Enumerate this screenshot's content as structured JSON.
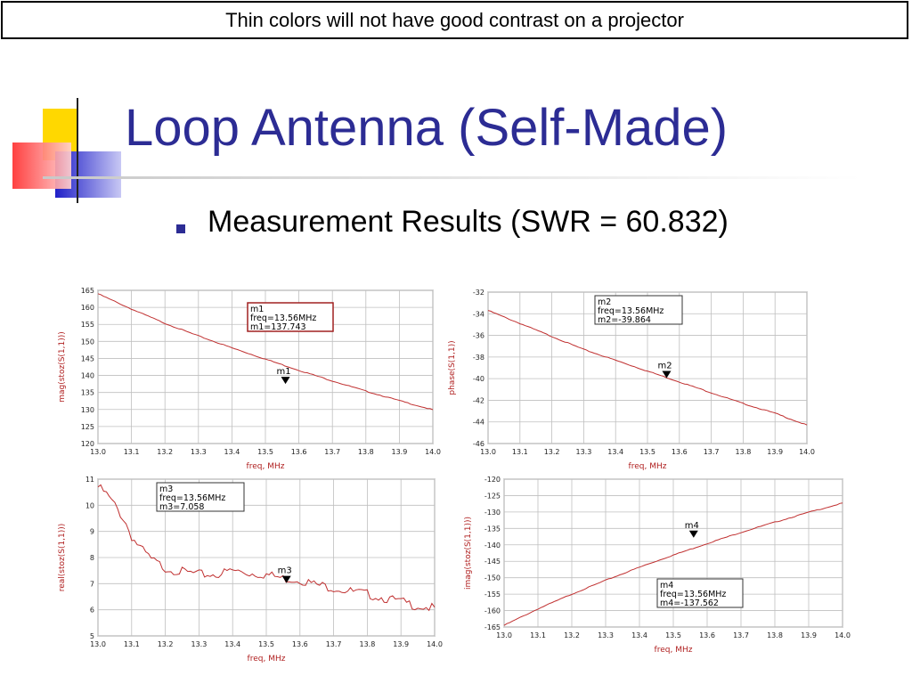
{
  "banner": {
    "text": "Thin colors will not have good contrast on a projector"
  },
  "title": "Loop Antenna (Self-Made)",
  "bullet": "Measurement Results (SWR = 60.832)",
  "colors": {
    "title": "#2c2c94",
    "trace": "#c03030",
    "grid": "#bfbfbf",
    "axis_label": "#b02020"
  },
  "chart_data": [
    {
      "type": "line",
      "xlabel": "freq, MHz",
      "ylabel": "mag(stoz(S(1,1)))",
      "x_ticks": [
        "13.0",
        "13.1",
        "13.2",
        "13.3",
        "13.4",
        "13.5",
        "13.6",
        "13.7",
        "13.8",
        "13.9",
        "14.0"
      ],
      "y_ticks": [
        "120",
        "125",
        "130",
        "135",
        "140",
        "145",
        "150",
        "155",
        "160",
        "165"
      ],
      "xlim": [
        13.0,
        14.0
      ],
      "ylim": [
        120,
        165
      ],
      "series": [
        {
          "x": [
            13.0,
            13.1,
            13.2,
            13.3,
            13.4,
            13.5,
            13.6,
            13.7,
            13.8,
            13.9,
            14.0
          ],
          "values": [
            164,
            159.5,
            155.3,
            151.6,
            148.1,
            144.8,
            141.5,
            138.4,
            135.4,
            132.6,
            129.9
          ]
        }
      ],
      "marker": {
        "name": "m1",
        "x": 13.56,
        "y": 137.743,
        "lines": [
          "m1",
          "freq=13.56MHz",
          "m1=137.743"
        ]
      },
      "grid": true
    },
    {
      "type": "line",
      "xlabel": "freq, MHz",
      "ylabel": "phase(S(1,1))",
      "x_ticks": [
        "13.0",
        "13.1",
        "13.2",
        "13.3",
        "13.4",
        "13.5",
        "13.6",
        "13.7",
        "13.8",
        "13.9",
        "14.0"
      ],
      "y_ticks": [
        "-32",
        "-34",
        "-36",
        "-38",
        "-40",
        "-42",
        "-44",
        "-46"
      ],
      "xlim": [
        13.0,
        14.0
      ],
      "ylim": [
        -46,
        -32
      ],
      "series": [
        {
          "x": [
            13.0,
            13.1,
            13.2,
            13.3,
            13.4,
            13.5,
            13.6,
            13.7,
            13.8,
            13.9,
            14.0
          ],
          "values": [
            -33.7,
            -34.9,
            -36.1,
            -37.3,
            -38.3,
            -39.3,
            -40.3,
            -41.3,
            -42.3,
            -43.2,
            -44.3
          ]
        }
      ],
      "marker": {
        "name": "m2",
        "x": 13.56,
        "y": -39.864,
        "lines": [
          "m2",
          "freq=13.56MHz",
          "m2=-39.864"
        ]
      },
      "grid": true
    },
    {
      "type": "line",
      "xlabel": "freq, MHz",
      "ylabel": "real(stoz(S(1,1)))",
      "x_ticks": [
        "13.0",
        "13.1",
        "13.2",
        "13.3",
        "13.4",
        "13.5",
        "13.6",
        "13.7",
        "13.8",
        "13.9",
        "14.0"
      ],
      "y_ticks": [
        "5",
        "6",
        "7",
        "8",
        "9",
        "10",
        "11"
      ],
      "xlim": [
        13.0,
        14.0
      ],
      "ylim": [
        5,
        11
      ],
      "series": [
        {
          "x": [
            13.0,
            13.02,
            13.05,
            13.08,
            13.1,
            13.13,
            13.16,
            13.2,
            13.25,
            13.3,
            13.35,
            13.4,
            13.45,
            13.5,
            13.55,
            13.6,
            13.65,
            13.7,
            13.75,
            13.8,
            13.85,
            13.9,
            13.95,
            14.0
          ],
          "values": [
            10.7,
            10.5,
            10.0,
            9.4,
            8.8,
            8.3,
            7.9,
            7.6,
            7.45,
            7.35,
            7.35,
            7.5,
            7.4,
            7.35,
            7.2,
            7.15,
            6.95,
            6.85,
            6.7,
            6.6,
            6.45,
            6.3,
            6.15,
            6.05
          ]
        }
      ],
      "marker": {
        "name": "m3",
        "x": 13.56,
        "y": 7.058,
        "lines": [
          "m3",
          "freq=13.56MHz",
          "m3=7.058"
        ]
      },
      "grid": true
    },
    {
      "type": "line",
      "xlabel": "freq, MHz",
      "ylabel": "imag(stoz(S(1,1)))",
      "x_ticks": [
        "13.0",
        "13.1",
        "13.2",
        "13.3",
        "13.4",
        "13.5",
        "13.6",
        "13.7",
        "13.8",
        "13.9",
        "14.0"
      ],
      "y_ticks": [
        "-120",
        "-125",
        "-130",
        "-135",
        "-140",
        "-145",
        "-150",
        "-155",
        "-160",
        "-165"
      ],
      "xlim": [
        13.0,
        14.0
      ],
      "ylim": [
        -165,
        -120
      ],
      "series": [
        {
          "x": [
            13.0,
            13.1,
            13.2,
            13.3,
            13.4,
            13.5,
            13.6,
            13.7,
            13.8,
            13.9,
            14.0
          ],
          "values": [
            -164.5,
            -159.5,
            -155.0,
            -150.8,
            -146.8,
            -143.1,
            -139.6,
            -136.2,
            -133.1,
            -130.1,
            -127.3
          ]
        }
      ],
      "marker": {
        "name": "m4",
        "x": 13.56,
        "y": -137.562,
        "lines": [
          "m4",
          "freq=13.56MHz",
          "m4=-137.562"
        ]
      },
      "grid": true
    }
  ]
}
